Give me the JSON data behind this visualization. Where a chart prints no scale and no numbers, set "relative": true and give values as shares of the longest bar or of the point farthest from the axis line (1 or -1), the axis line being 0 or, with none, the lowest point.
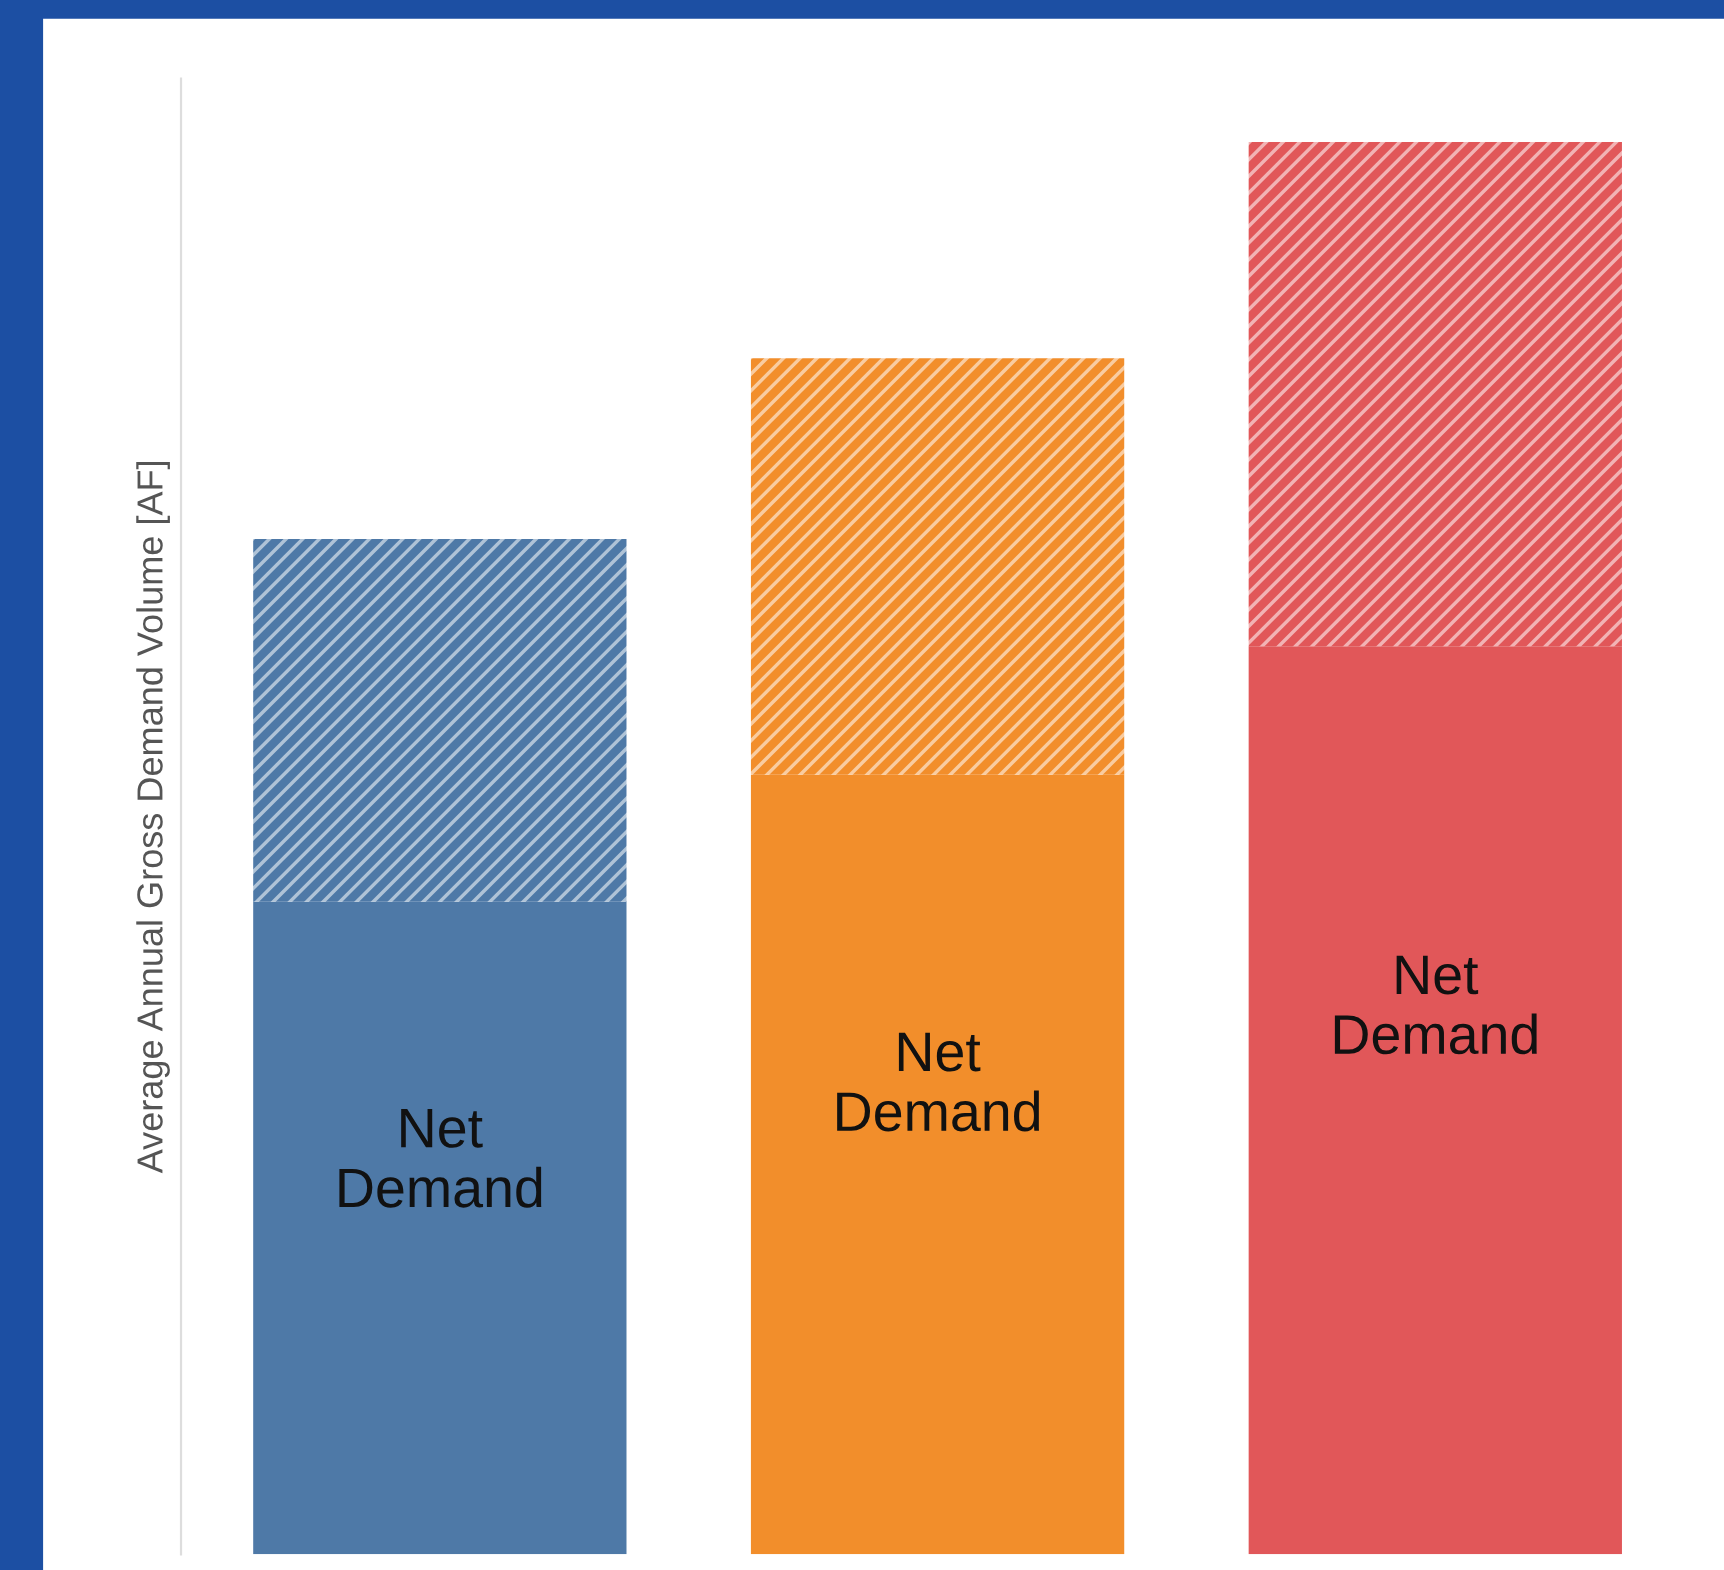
{
  "chart_data": {
    "type": "bar",
    "relative": true,
    "stacked": true,
    "ylabel": "Average Annual Gross Demand Volume [AF]",
    "categories": [
      null,
      null,
      null
    ],
    "series": [
      {
        "colors": [
          "#4e79a7",
          "#f28e2b",
          "#e15759"
        ],
        "values": [
          0.462,
          0.552,
          0.643
        ]
      },
      {
        "colors": [
          "#4e79a7",
          "#f28e2b",
          "#e15759"
        ],
        "values": [
          0.257,
          0.295,
          0.357
        ]
      }
    ],
    "annotations": [
      "Net\nDemand",
      "Net\nDemand",
      "Net\nDemand"
    ]
  }
}
